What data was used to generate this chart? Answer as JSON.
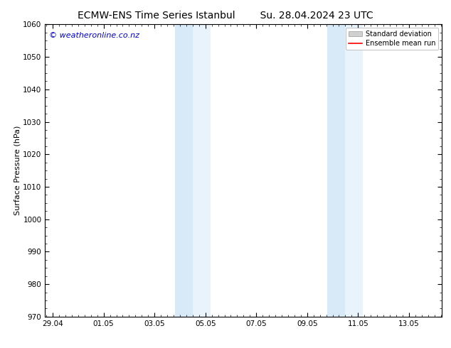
{
  "title_left": "ECMW-ENS Time Series Istanbul",
  "title_right": "Su. 28.04.2024 23 UTC",
  "ylabel": "Surface Pressure (hPa)",
  "xlabel": "",
  "ylim": [
    970,
    1060
  ],
  "yticks": [
    970,
    980,
    990,
    1000,
    1010,
    1020,
    1030,
    1040,
    1050,
    1060
  ],
  "xtick_labels": [
    "29.04",
    "01.05",
    "03.05",
    "05.05",
    "07.05",
    "09.05",
    "11.05",
    "13.05"
  ],
  "xtick_positions": [
    0,
    2,
    4,
    6,
    8,
    10,
    12,
    14
  ],
  "xmin": -0.3,
  "xmax": 15.3,
  "shaded_bands": [
    {
      "xmin": 4.8,
      "xmax": 5.5,
      "color": "#d8eaf8"
    },
    {
      "xmin": 5.5,
      "xmax": 6.2,
      "color": "#e8f3fb"
    },
    {
      "xmin": 10.8,
      "xmax": 11.5,
      "color": "#d8eaf8"
    },
    {
      "xmin": 11.5,
      "xmax": 12.2,
      "color": "#e8f3fb"
    }
  ],
  "background_color": "#ffffff",
  "watermark": "© weatheronline.co.nz",
  "watermark_color": "#0000cc",
  "legend_std_label": "Standard deviation",
  "legend_mean_label": "Ensemble mean run",
  "legend_std_color": "#d0d0d0",
  "legend_mean_color": "#ff0000",
  "title_fontsize": 10,
  "tick_fontsize": 7.5,
  "ylabel_fontsize": 8,
  "watermark_fontsize": 8
}
